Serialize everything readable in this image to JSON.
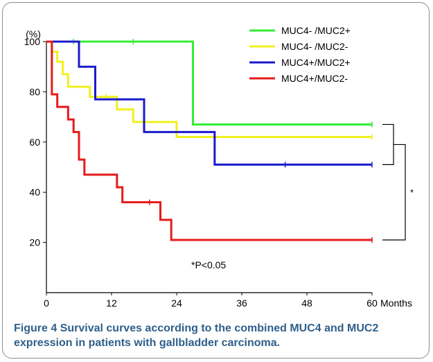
{
  "chart_data": {
    "type": "line",
    "step": true,
    "xlabel": "Months",
    "ylabel": "(%)",
    "xlim": [
      0,
      60
    ],
    "ylim": [
      0,
      100
    ],
    "xticks": [
      0,
      12,
      24,
      36,
      48,
      60
    ],
    "yticks": [
      20,
      40,
      60,
      80,
      100
    ],
    "legend_position": "top-right",
    "annotation": "*P<0.05",
    "significance_marker": "*",
    "series": [
      {
        "name": "MUC4- /MUC2+",
        "color": "#33ee33",
        "x": [
          0,
          27,
          60
        ],
        "y": [
          100,
          67,
          67
        ],
        "censors": [
          [
            5,
            100
          ],
          [
            16,
            100
          ],
          [
            60,
            67
          ]
        ]
      },
      {
        "name": "MUC4- /MUC2-",
        "color": "#f0f020",
        "x": [
          0,
          1,
          2,
          3,
          4,
          8,
          13,
          16,
          24,
          60
        ],
        "y": [
          100,
          96,
          92,
          87,
          82,
          78,
          73,
          68,
          62,
          62
        ],
        "censors": [
          [
            11,
            78
          ],
          [
            60,
            62
          ]
        ]
      },
      {
        "name": "MUC4+/MUC2+",
        "color": "#1a1acc",
        "x": [
          0,
          6,
          9,
          18,
          31,
          60
        ],
        "y": [
          100,
          90,
          77,
          64,
          51,
          51
        ],
        "censors": [
          [
            44,
            51
          ],
          [
            60,
            51
          ]
        ]
      },
      {
        "name": "MUC4+/MUC2-",
        "color": "#e61a1a",
        "x": [
          0,
          1,
          2,
          4,
          5,
          6,
          7,
          13,
          14,
          20,
          21,
          23,
          60
        ],
        "y": [
          100,
          79,
          74,
          69,
          64,
          53,
          47,
          42,
          36,
          36,
          29,
          21,
          21
        ],
        "censors": [
          [
            19,
            36
          ],
          [
            60,
            21
          ]
        ]
      }
    ]
  },
  "caption": {
    "label": "Figure 4",
    "text": "Survival curves according to the combined MUC4 and MUC2 expression in patients with gallbladder carcinoma."
  }
}
